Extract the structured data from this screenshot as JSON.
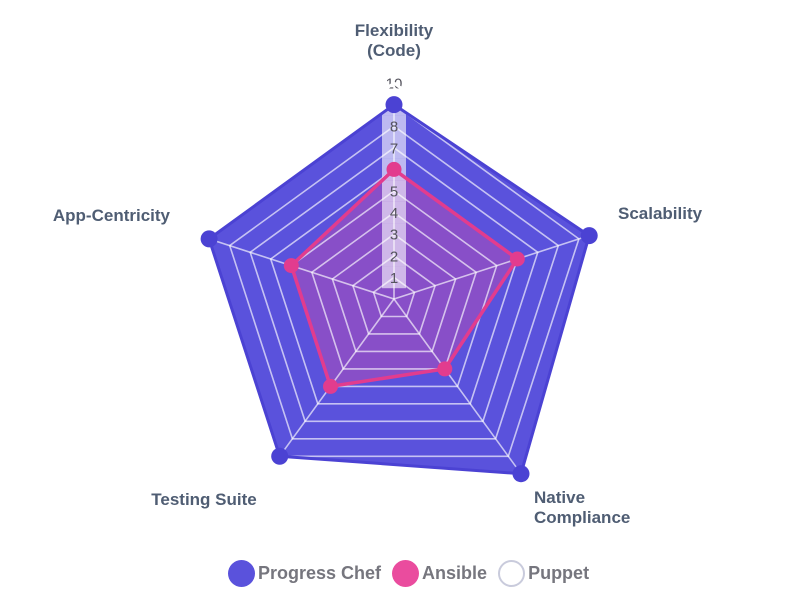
{
  "chart_data": {
    "type": "radar",
    "axis_min": 0,
    "axis_max": 10,
    "tick_labels": [
      "1",
      "2",
      "3",
      "4",
      "5",
      "6",
      "7",
      "8",
      "9",
      "10"
    ],
    "grid": "on",
    "grid_color": "rgba(255,255,255,0.65)",
    "tick_box_color": "rgba(255,255,255,0.6)",
    "tick_text_color": "#55545E",
    "axis_label_color": "#4F5D73",
    "legend_position": "bottom",
    "axes": [
      {
        "id": "flexibility",
        "label": "Flexibility\n(Code)"
      },
      {
        "id": "scalability",
        "label": "Scalability"
      },
      {
        "id": "native-compliance",
        "label": "Native\nCompliance"
      },
      {
        "id": "testing-suite",
        "label": "Testing Suite"
      },
      {
        "id": "app-centricity",
        "label": "App-Centricity"
      }
    ],
    "series": [
      {
        "name": "Progress Chef",
        "values": [
          9,
          9.5,
          10,
          9,
          9
        ],
        "color": "#5A52DC",
        "stroke": "#4B42D3",
        "fill_opacity": 1,
        "marker": "dot",
        "marker_size": 8.5
      },
      {
        "name": "Ansible",
        "values": [
          6,
          6,
          4,
          5,
          5
        ],
        "color": "#EA4C9E",
        "stroke": "#E23C8E",
        "fill_opacity": 0.32,
        "marker": "dot",
        "marker_size": 7.5
      },
      {
        "name": "Puppet",
        "values": [
          10,
          10,
          10,
          10,
          10
        ],
        "color": "#FFFFFF",
        "stroke": "#FFFFFF",
        "fill_opacity": 0,
        "marker": "none",
        "marker_size": 0,
        "legend_ring_color": "#C9CBDC"
      }
    ]
  }
}
